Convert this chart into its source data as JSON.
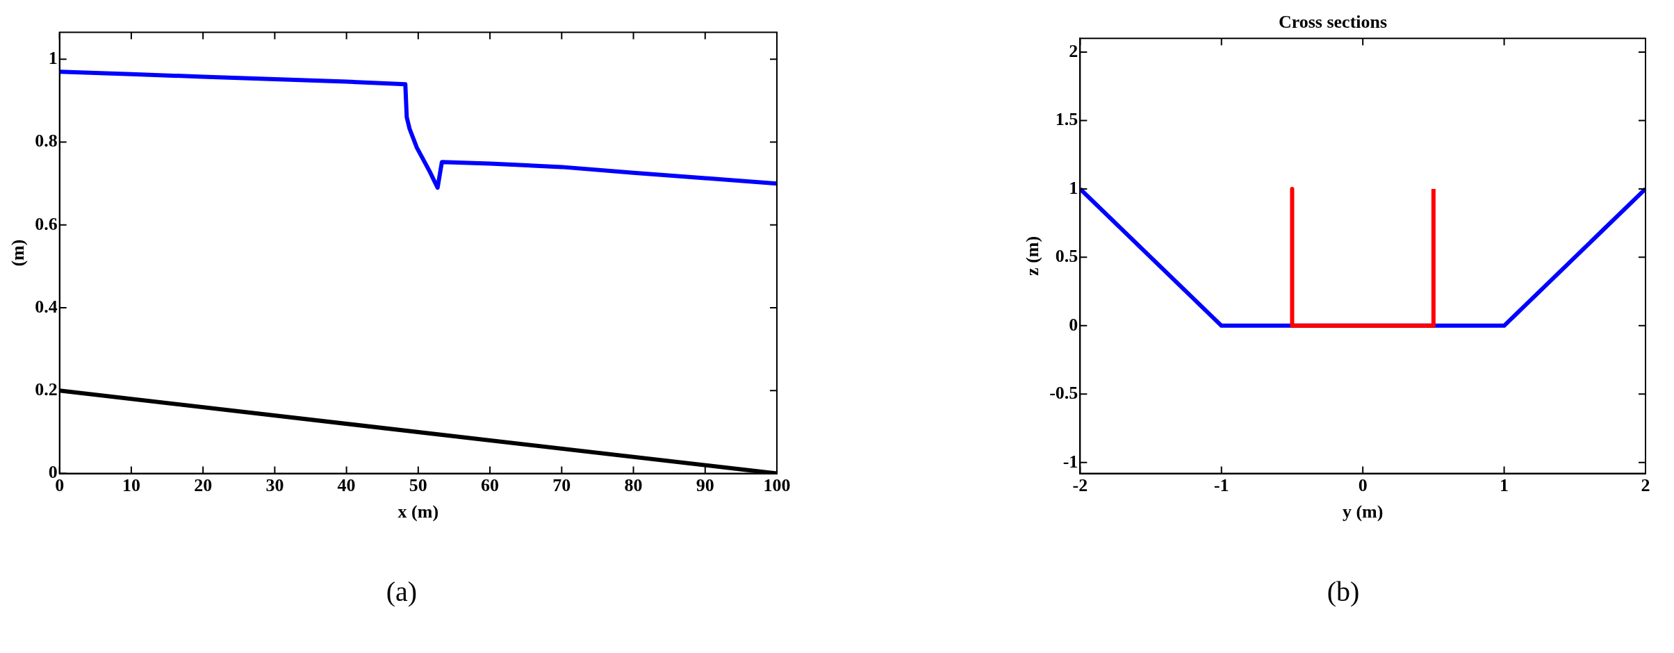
{
  "chart_data": [
    {
      "type": "line",
      "xlabel": "x (m)",
      "ylabel": "(m)",
      "xlim": [
        0,
        100
      ],
      "ylim": [
        0,
        1.065
      ],
      "xticks": [
        0,
        10,
        20,
        30,
        40,
        50,
        60,
        70,
        80,
        90,
        100
      ],
      "yticks": [
        0,
        0.2,
        0.4,
        0.6,
        0.8,
        1
      ],
      "grid": false,
      "legend": false,
      "marker": "none",
      "line_style": "solid",
      "annotations": [
        "(a)"
      ],
      "series": [
        {
          "color": "#0000ff",
          "x": [
            0,
            10,
            20,
            30,
            40,
            48.2,
            48.4,
            48.8,
            49.8,
            51.6,
            52.7,
            53.3,
            60,
            70,
            80,
            90,
            100
          ],
          "values": [
            0.97,
            0.964,
            0.958,
            0.952,
            0.946,
            0.94,
            0.86,
            0.832,
            0.787,
            0.729,
            0.69,
            0.752,
            0.748,
            0.74,
            0.726,
            0.713,
            0.7
          ]
        },
        {
          "color": "#000000",
          "x": [
            0,
            100
          ],
          "values": [
            0.2,
            0
          ]
        }
      ]
    },
    {
      "type": "line",
      "title": "Cross sections",
      "xlabel": "y (m)",
      "ylabel": "z (m)",
      "xlim": [
        -2,
        2
      ],
      "ylim": [
        -1.08,
        2.1
      ],
      "xticks": [
        -2,
        -1,
        0,
        1,
        2
      ],
      "yticks": [
        -1,
        -0.5,
        0,
        0.5,
        1,
        1.5,
        2
      ],
      "grid": false,
      "legend": false,
      "marker": "none",
      "line_style": "solid",
      "annotations": [
        "(b)"
      ],
      "series": [
        {
          "color": "#0000ff",
          "x": [
            -2,
            -1,
            1,
            2
          ],
          "values": [
            1,
            0,
            0,
            1
          ]
        },
        {
          "color": "#ff0000",
          "x": [
            -0.5,
            -0.5,
            0.5,
            0.5
          ],
          "values": [
            1,
            0,
            0,
            1
          ]
        }
      ]
    }
  ]
}
